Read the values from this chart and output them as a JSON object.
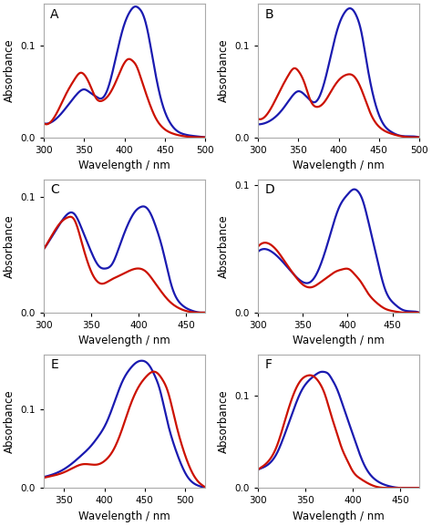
{
  "panels": [
    {
      "label": "A",
      "xlim": [
        300,
        500
      ],
      "ylim": [
        0.0,
        0.145
      ],
      "yticks": [
        0.0,
        0.1
      ],
      "xticks": [
        300,
        350,
        400,
        450,
        500
      ],
      "blue": {
        "x": [
          300,
          315,
          330,
          340,
          350,
          358,
          365,
          370,
          378,
          388,
          398,
          407,
          413,
          418,
          422,
          428,
          435,
          445,
          455,
          465,
          475,
          490,
          500
        ],
        "y": [
          0.015,
          0.02,
          0.035,
          0.046,
          0.052,
          0.048,
          0.044,
          0.042,
          0.05,
          0.082,
          0.118,
          0.137,
          0.142,
          0.14,
          0.135,
          0.118,
          0.085,
          0.042,
          0.018,
          0.007,
          0.003,
          0.001,
          0.0
        ]
      },
      "red": {
        "x": [
          300,
          315,
          328,
          338,
          345,
          350,
          358,
          365,
          373,
          382,
          390,
          398,
          405,
          410,
          415,
          420,
          428,
          438,
          448,
          460,
          475,
          490,
          500
        ],
        "y": [
          0.015,
          0.025,
          0.048,
          0.063,
          0.07,
          0.068,
          0.055,
          0.042,
          0.04,
          0.048,
          0.062,
          0.078,
          0.085,
          0.083,
          0.077,
          0.065,
          0.044,
          0.022,
          0.01,
          0.004,
          0.001,
          0.0,
          0.0
        ]
      }
    },
    {
      "label": "B",
      "xlim": [
        300,
        500
      ],
      "ylim": [
        0.0,
        0.145
      ],
      "yticks": [
        0.0,
        0.1
      ],
      "xticks": [
        300,
        350,
        400,
        450,
        500
      ],
      "blue": {
        "x": [
          300,
          315,
          330,
          340,
          350,
          358,
          365,
          370,
          378,
          388,
          398,
          407,
          413,
          418,
          422,
          428,
          435,
          445,
          455,
          465,
          475,
          490,
          500
        ],
        "y": [
          0.014,
          0.018,
          0.03,
          0.042,
          0.05,
          0.046,
          0.04,
          0.038,
          0.048,
          0.08,
          0.116,
          0.135,
          0.14,
          0.138,
          0.132,
          0.115,
          0.08,
          0.038,
          0.015,
          0.006,
          0.002,
          0.001,
          0.0
        ]
      },
      "red": {
        "x": [
          300,
          315,
          328,
          338,
          345,
          350,
          358,
          365,
          373,
          382,
          392,
          400,
          410,
          418,
          424,
          430,
          440,
          452,
          465,
          478,
          490,
          500
        ],
        "y": [
          0.02,
          0.03,
          0.052,
          0.068,
          0.075,
          0.072,
          0.058,
          0.04,
          0.033,
          0.038,
          0.052,
          0.062,
          0.068,
          0.067,
          0.06,
          0.048,
          0.025,
          0.01,
          0.004,
          0.001,
          0.0,
          0.0
        ]
      }
    },
    {
      "label": "C",
      "xlim": [
        300,
        470
      ],
      "ylim": [
        0.0,
        0.115
      ],
      "yticks": [
        0.0,
        0.1
      ],
      "xticks": [
        300,
        350,
        400,
        450
      ],
      "blue": {
        "x": [
          300,
          308,
          318,
          325,
          332,
          340,
          350,
          358,
          365,
          372,
          380,
          388,
          396,
          402,
          407,
          412,
          418,
          425,
          435,
          445,
          455,
          465,
          470
        ],
        "y": [
          0.055,
          0.065,
          0.078,
          0.085,
          0.085,
          0.072,
          0.052,
          0.04,
          0.038,
          0.042,
          0.058,
          0.075,
          0.087,
          0.091,
          0.091,
          0.086,
          0.074,
          0.055,
          0.022,
          0.007,
          0.002,
          0.0,
          0.0
        ]
      },
      "red": {
        "x": [
          300,
          308,
          318,
          325,
          332,
          340,
          350,
          360,
          370,
          380,
          390,
          400,
          408,
          415,
          422,
          432,
          442,
          452,
          462,
          470
        ],
        "y": [
          0.055,
          0.066,
          0.078,
          0.082,
          0.08,
          0.06,
          0.035,
          0.025,
          0.028,
          0.032,
          0.036,
          0.038,
          0.035,
          0.028,
          0.02,
          0.01,
          0.004,
          0.001,
          0.0,
          0.0
        ]
      }
    },
    {
      "label": "D",
      "xlim": [
        300,
        480
      ],
      "ylim": [
        0.0,
        0.105
      ],
      "yticks": [
        0.0,
        0.1
      ],
      "xticks": [
        300,
        350,
        400,
        450
      ],
      "blue": {
        "x": [
          300,
          308,
          315,
          322,
          330,
          340,
          350,
          360,
          370,
          380,
          390,
          400,
          407,
          412,
          417,
          422,
          432,
          442,
          452,
          462,
          472,
          480
        ],
        "y": [
          0.048,
          0.05,
          0.048,
          0.044,
          0.038,
          0.03,
          0.024,
          0.025,
          0.038,
          0.06,
          0.082,
          0.093,
          0.097,
          0.095,
          0.088,
          0.075,
          0.045,
          0.018,
          0.007,
          0.002,
          0.001,
          0.0
        ]
      },
      "red": {
        "x": [
          300,
          308,
          315,
          322,
          330,
          340,
          350,
          360,
          370,
          378,
          386,
          394,
          402,
          408,
          415,
          422,
          432,
          442,
          452,
          462,
          472,
          480
        ],
        "y": [
          0.052,
          0.055,
          0.053,
          0.048,
          0.04,
          0.03,
          0.022,
          0.02,
          0.024,
          0.028,
          0.032,
          0.034,
          0.034,
          0.03,
          0.024,
          0.016,
          0.008,
          0.003,
          0.001,
          0.0,
          0.0,
          0.0
        ]
      }
    },
    {
      "label": "E",
      "xlim": [
        325,
        525
      ],
      "ylim": [
        0.0,
        0.17
      ],
      "yticks": [
        0.0,
        0.1
      ],
      "xticks": [
        350,
        400,
        450,
        500
      ],
      "blue": {
        "x": [
          325,
          338,
          350,
          362,
          372,
          382,
          392,
          402,
          412,
          422,
          432,
          440,
          447,
          452,
          457,
          462,
          468,
          478,
          490,
          502,
          514,
          522,
          525
        ],
        "y": [
          0.014,
          0.018,
          0.024,
          0.033,
          0.042,
          0.052,
          0.065,
          0.082,
          0.108,
          0.135,
          0.152,
          0.16,
          0.162,
          0.16,
          0.154,
          0.144,
          0.128,
          0.085,
          0.044,
          0.016,
          0.004,
          0.001,
          0.0
        ]
      },
      "red": {
        "x": [
          325,
          338,
          350,
          362,
          372,
          382,
          392,
          402,
          412,
          422,
          432,
          442,
          452,
          460,
          466,
          472,
          478,
          488,
          500,
          512,
          522,
          525
        ],
        "y": [
          0.013,
          0.016,
          0.02,
          0.026,
          0.03,
          0.03,
          0.03,
          0.036,
          0.05,
          0.075,
          0.105,
          0.128,
          0.142,
          0.148,
          0.146,
          0.138,
          0.125,
          0.085,
          0.042,
          0.014,
          0.003,
          0.001
        ]
      }
    },
    {
      "label": "F",
      "xlim": [
        300,
        470
      ],
      "ylim": [
        0.0,
        0.145
      ],
      "yticks": [
        0.0,
        0.1
      ],
      "xticks": [
        300,
        350,
        400,
        450
      ],
      "blue": {
        "x": [
          300,
          310,
          320,
          328,
          334,
          340,
          346,
          352,
          357,
          362,
          366,
          370,
          374,
          378,
          383,
          390,
          400,
          412,
          425,
          438,
          450,
          462,
          470
        ],
        "y": [
          0.02,
          0.025,
          0.038,
          0.058,
          0.075,
          0.092,
          0.106,
          0.115,
          0.12,
          0.124,
          0.126,
          0.126,
          0.124,
          0.118,
          0.108,
          0.088,
          0.058,
          0.025,
          0.008,
          0.002,
          0.0,
          0.0,
          0.0
        ]
      },
      "red": {
        "x": [
          300,
          310,
          320,
          328,
          334,
          340,
          346,
          352,
          357,
          362,
          366,
          370,
          374,
          378,
          383,
          388,
          394,
          400,
          408,
          416,
          426,
          438,
          450,
          462,
          470
        ],
        "y": [
          0.02,
          0.028,
          0.046,
          0.072,
          0.092,
          0.108,
          0.118,
          0.122,
          0.122,
          0.118,
          0.112,
          0.103,
          0.09,
          0.076,
          0.06,
          0.044,
          0.03,
          0.018,
          0.01,
          0.005,
          0.001,
          0.0,
          0.0,
          0.0,
          0.0
        ]
      }
    }
  ],
  "blue_color": "#1a1ab0",
  "red_color": "#cc1100",
  "linewidth": 1.6,
  "label_fontsize": 10,
  "tick_fontsize": 7.5,
  "axis_label_fontsize": 8.5,
  "spine_color": "#aaaaaa",
  "spine_linewidth": 0.8
}
